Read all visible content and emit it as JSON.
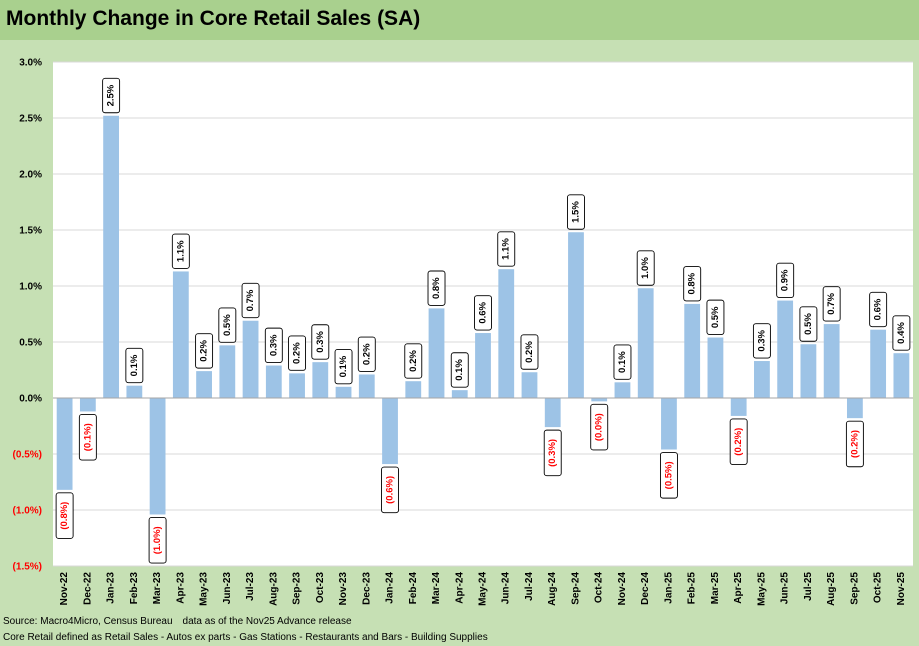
{
  "chart_data": {
    "type": "bar",
    "title": "Monthly Change in Core Retail Sales (SA)",
    "xlabel": "",
    "ylabel": "",
    "ylim": [
      -1.5,
      3.0
    ],
    "yticks": [
      "3.0%",
      "2.5%",
      "2.0%",
      "1.5%",
      "1.0%",
      "0.5%",
      "0.0%",
      "(0.5%)",
      "(1.0%)",
      "(1.5%)"
    ],
    "categories": [
      "Nov-22",
      "Dec-22",
      "Jan-23",
      "Feb-23",
      "Mar-23",
      "Apr-23",
      "May-23",
      "Jun-23",
      "Jul-23",
      "Aug-23",
      "Sep-23",
      "Oct-23",
      "Nov-23",
      "Dec-23",
      "Jan-24",
      "Feb-24",
      "Mar-24",
      "Apr-24",
      "May-24",
      "Jun-24",
      "Jul-24",
      "Aug-24",
      "Sep-24",
      "Oct-24",
      "Nov-24",
      "Dec-24",
      "Jan-25",
      "Feb-25",
      "Mar-25",
      "Apr-25",
      "May-25",
      "Jun-25",
      "Jul-25",
      "Aug-25",
      "Sep-25",
      "Oct-25",
      "Nov-25"
    ],
    "values": [
      -0.82,
      -0.12,
      2.52,
      0.11,
      -1.04,
      1.13,
      0.24,
      0.47,
      0.69,
      0.29,
      0.22,
      0.32,
      0.1,
      0.21,
      -0.59,
      0.15,
      0.8,
      0.07,
      0.58,
      1.15,
      0.23,
      -0.26,
      1.48,
      -0.03,
      0.14,
      0.98,
      -0.46,
      0.84,
      0.54,
      -0.16,
      0.33,
      0.87,
      0.48,
      0.66,
      -0.18,
      0.61,
      0.4
    ],
    "labels": [
      "(0.8%)",
      "(0.1%)",
      "2.5%",
      "0.1%",
      "(1.0%)",
      "1.1%",
      "0.2%",
      "0.5%",
      "0.7%",
      "0.3%",
      "0.2%",
      "0.3%",
      "0.1%",
      "0.2%",
      "(0.6%)",
      "0.2%",
      "0.8%",
      "0.1%",
      "0.6%",
      "1.1%",
      "0.2%",
      "(0.3%)",
      "1.5%",
      "(0.0%)",
      "0.1%",
      "1.0%",
      "(0.5%)",
      "0.8%",
      "0.5%",
      "(0.2%)",
      "0.3%",
      "0.9%",
      "0.5%",
      "0.7%",
      "(0.2%)",
      "0.6%",
      "0.4%"
    ],
    "bar_color": "#9dc3e6",
    "negative_label_color": "#ff0000",
    "grid": true
  },
  "footer": {
    "source": "Source: Macro4Micro, Census Bureau",
    "asof": "data as of the Nov25 Advance release",
    "definition": "Core Retail defined as Retail Sales - Autos ex parts - Gas Stations - Restaurants and Bars - Building Supplies"
  }
}
